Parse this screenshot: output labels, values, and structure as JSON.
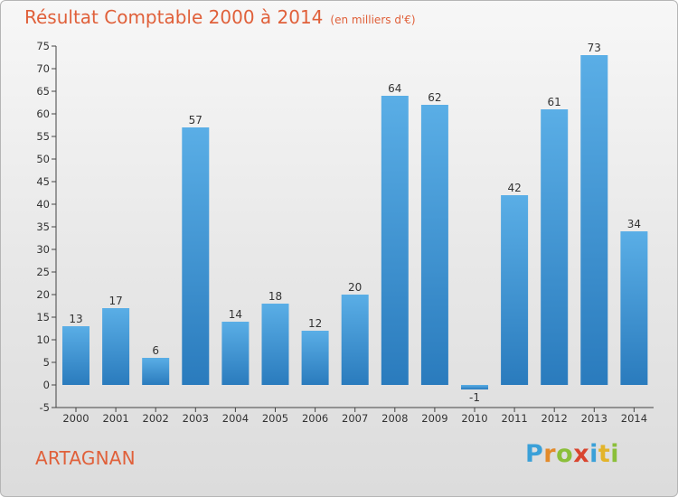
{
  "chart_data": {
    "type": "bar",
    "title": "Résultat Comptable 2000 à 2014",
    "subtitle": "(en milliers d'€)",
    "categories": [
      "2000",
      "2001",
      "2002",
      "2003",
      "2004",
      "2005",
      "2006",
      "2007",
      "2008",
      "2009",
      "2010",
      "2011",
      "2012",
      "2013",
      "2014"
    ],
    "values": [
      13,
      17,
      6,
      57,
      14,
      18,
      12,
      20,
      64,
      62,
      -1,
      42,
      61,
      73,
      34
    ],
    "ylim": [
      -5,
      75
    ],
    "yticks": [
      -5,
      0,
      5,
      10,
      15,
      20,
      25,
      30,
      35,
      40,
      45,
      50,
      55,
      60,
      65,
      70,
      75
    ],
    "xlabel": "",
    "ylabel": "",
    "grid": false,
    "colors": {
      "bar_top": "#5aaee6",
      "bar_bottom": "#2a7bbd",
      "title": "#e0603a"
    }
  },
  "footer": {
    "town": "ARTAGNAN",
    "logo_letters": [
      "P",
      "r",
      "o",
      "x",
      "i",
      "t",
      "i"
    ]
  }
}
